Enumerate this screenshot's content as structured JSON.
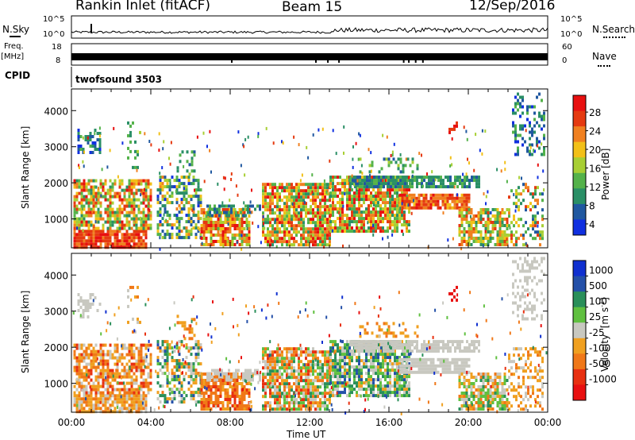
{
  "header": {
    "station": "Rankin Inlet (fitACF)",
    "beam": "Beam 15",
    "date": "12/Sep/2016"
  },
  "mini_panels": {
    "nsky": {
      "label": "N.Sky",
      "ticks": [
        "10^5",
        "10^0"
      ],
      "right_label": "N.Search",
      "right_ticks": [
        "10^5",
        "10^0"
      ]
    },
    "freq": {
      "label_line1": "Freq.",
      "label_line2": "[MHz]",
      "ticks": [
        "18",
        "8"
      ],
      "right_label": "Nave",
      "right_ticks": [
        "60",
        "0"
      ]
    },
    "cpid": {
      "label": "CPID",
      "value": "twofsound 3503"
    }
  },
  "colors": {
    "power_scale": [
      "#1030e0",
      "#2058a0",
      "#2a8f66",
      "#54b24a",
      "#a8cf34",
      "#f2c018",
      "#f08020",
      "#e53a10",
      "#e81010"
    ],
    "velocity_scale": [
      "#1030d0",
      "#2450a8",
      "#2a8f5a",
      "#60c040",
      "#c8c8c0",
      "#f0a020",
      "#f07818",
      "#e83010",
      "#e81010"
    ]
  },
  "chart_data": [
    {
      "type": "heatmap",
      "name": "power",
      "ylabel": "Slant Range [km]",
      "y_ticks": [
        1000,
        2000,
        3000,
        4000
      ],
      "ylim": [
        200,
        4600
      ],
      "x_ticks": [
        "00:00",
        "04:00",
        "08:00",
        "12:00",
        "16:00",
        "20:00",
        "00:00"
      ],
      "xlim_hours": [
        0,
        24
      ],
      "colorbar": {
        "label": "Power [dB]",
        "ticks": [
          "28",
          "24",
          "20",
          "16",
          "12",
          "8",
          "4"
        ],
        "range": [
          0,
          30
        ]
      }
    },
    {
      "type": "heatmap",
      "name": "velocity",
      "ylabel": "Slant Range [km]",
      "y_ticks": [
        1000,
        2000,
        3000,
        4000
      ],
      "ylim": [
        200,
        4600
      ],
      "x_ticks": [
        "00:00",
        "04:00",
        "08:00",
        "12:00",
        "16:00",
        "20:00",
        "00:00"
      ],
      "xlim_hours": [
        0,
        24
      ],
      "xlabel": "Time UT",
      "colorbar": {
        "label_main": "Velocity",
        "label_unit": "[m s",
        "label_sup": "-1",
        "label_close": "]",
        "ticks": [
          "1000",
          "500",
          "100",
          "25",
          "-25",
          "-100",
          "-500",
          "-1000"
        ]
      }
    }
  ]
}
